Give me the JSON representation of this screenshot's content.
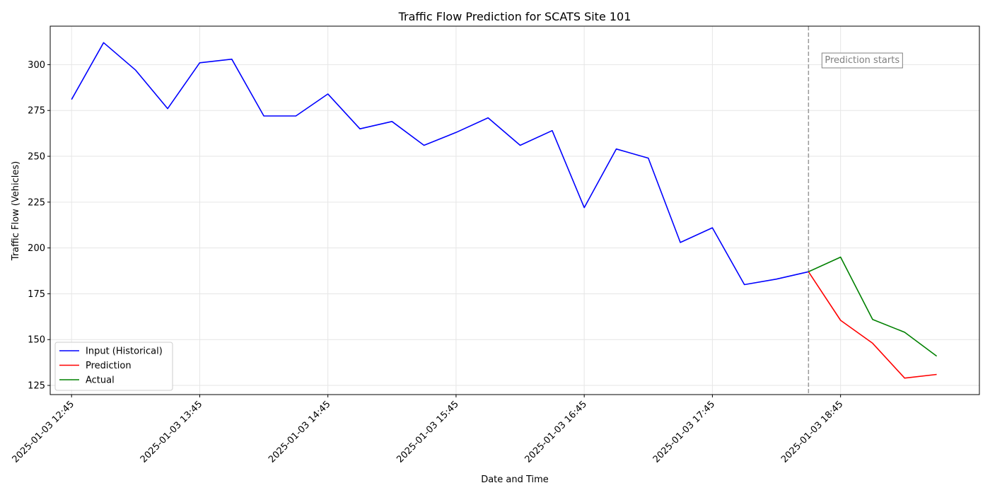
{
  "chart_data": {
    "type": "line",
    "title": "Traffic Flow Prediction for SCATS Site 101",
    "xlabel": "Date and Time",
    "ylabel": "Traffic Flow (Vehicles)",
    "ylim": [
      120,
      321
    ],
    "yticks": [
      125,
      150,
      175,
      200,
      225,
      250,
      275,
      300
    ],
    "x_tick_labels": [
      "2025-01-03 12:45",
      "2025-01-03 13:45",
      "2025-01-03 14:45",
      "2025-01-03 15:45",
      "2025-01-03 16:45",
      "2025-01-03 17:45",
      "2025-01-03 18:45"
    ],
    "x_tick_times": [
      "12:45",
      "13:45",
      "14:45",
      "15:45",
      "16:45",
      "17:45",
      "18:45"
    ],
    "xlim": [
      "12:35",
      "19:50"
    ],
    "grid": true,
    "legend_position": "lower-left",
    "series": [
      {
        "name": "Input (Historical)",
        "color": "#0000ff",
        "x": [
          "12:45",
          "13:00",
          "13:15",
          "13:30",
          "13:45",
          "14:00",
          "14:15",
          "14:30",
          "14:45",
          "15:00",
          "15:15",
          "15:30",
          "15:45",
          "16:00",
          "16:15",
          "16:30",
          "16:45",
          "17:00",
          "17:15",
          "17:30",
          "17:45",
          "18:00",
          "18:15",
          "18:30"
        ],
        "values": [
          281,
          312,
          297,
          276,
          301,
          303,
          272,
          272,
          284,
          265,
          269,
          256,
          263,
          271,
          256,
          264,
          222,
          254,
          249,
          203,
          211,
          180,
          183,
          187
        ]
      },
      {
        "name": "Prediction",
        "color": "#ff0000",
        "x": [
          "18:30",
          "18:45",
          "19:00",
          "19:15",
          "19:30"
        ],
        "values": [
          187,
          160.5,
          148,
          129,
          131
        ]
      },
      {
        "name": "Actual",
        "color": "#008000",
        "x": [
          "18:30",
          "18:45",
          "19:00",
          "19:15",
          "19:30"
        ],
        "values": [
          187,
          195,
          161,
          154,
          141
        ]
      }
    ],
    "vline": {
      "x": "18:30",
      "color": "#999999",
      "style": "dashed"
    },
    "annotation": {
      "text": "Prediction starts"
    }
  }
}
